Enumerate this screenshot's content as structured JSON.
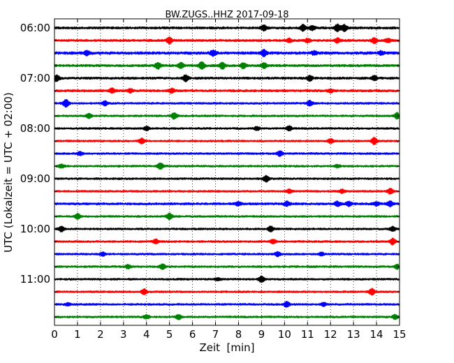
{
  "chart_data": {
    "type": "line",
    "title": "BW.ZUGS..HHZ 2017-09-18",
    "xlabel": "Zeit  [min]",
    "ylabel": "UTC (Lokalzeit = UTC + 02:00)",
    "xlim": [
      0,
      15
    ],
    "x_ticks": [
      "0",
      "1",
      "2",
      "3",
      "4",
      "5",
      "6",
      "7",
      "8",
      "9",
      "10",
      "11",
      "12",
      "13",
      "14",
      "15"
    ],
    "y_tick_labels": [
      "06:00",
      "07:00",
      "08:00",
      "09:00",
      "10:00",
      "11:00"
    ],
    "grid": "vertical dotted",
    "colors": [
      "#000000",
      "#ff0000",
      "#0000ff",
      "#008000"
    ],
    "traces": [
      {
        "start": "06:00",
        "color": "#000000",
        "amp": 3.0,
        "events": [
          {
            "t": 9.1,
            "a": 6
          },
          {
            "t": 10.8,
            "a": 7
          },
          {
            "t": 11.2,
            "a": 5
          },
          {
            "t": 12.3,
            "a": 8
          },
          {
            "t": 12.6,
            "a": 7
          }
        ]
      },
      {
        "start": "06:15",
        "color": "#ff0000",
        "amp": 3.0,
        "events": [
          {
            "t": 5.0,
            "a": 7
          },
          {
            "t": 10.2,
            "a": 4
          },
          {
            "t": 11.0,
            "a": 4
          },
          {
            "t": 12.3,
            "a": 5
          },
          {
            "t": 13.9,
            "a": 6
          },
          {
            "t": 14.5,
            "a": 4
          }
        ]
      },
      {
        "start": "06:30",
        "color": "#0000ff",
        "amp": 3.5,
        "events": [
          {
            "t": 1.4,
            "a": 5
          },
          {
            "t": 6.9,
            "a": 6
          },
          {
            "t": 9.1,
            "a": 7
          },
          {
            "t": 11.3,
            "a": 4
          },
          {
            "t": 14.2,
            "a": 4
          }
        ]
      },
      {
        "start": "06:45",
        "color": "#008000",
        "amp": 3.0,
        "events": [
          {
            "t": 4.5,
            "a": 7
          },
          {
            "t": 5.5,
            "a": 6
          },
          {
            "t": 6.4,
            "a": 8
          },
          {
            "t": 7.3,
            "a": 7
          },
          {
            "t": 8.2,
            "a": 6
          },
          {
            "t": 9.1,
            "a": 6
          }
        ]
      },
      {
        "start": "07:00",
        "color": "#000000",
        "amp": 3.0,
        "events": [
          {
            "t": 0.1,
            "a": 7
          },
          {
            "t": 5.7,
            "a": 7
          },
          {
            "t": 11.1,
            "a": 6
          },
          {
            "t": 13.9,
            "a": 5
          }
        ]
      },
      {
        "start": "07:15",
        "color": "#ff0000",
        "amp": 3.0,
        "events": [
          {
            "t": 2.5,
            "a": 5
          },
          {
            "t": 3.3,
            "a": 4
          },
          {
            "t": 5.1,
            "a": 5
          },
          {
            "t": 12.0,
            "a": 4
          }
        ]
      },
      {
        "start": "07:30",
        "color": "#0000ff",
        "amp": 2.5,
        "events": [
          {
            "t": 0.5,
            "a": 9
          },
          {
            "t": 2.2,
            "a": 5
          },
          {
            "t": 11.1,
            "a": 6
          }
        ]
      },
      {
        "start": "07:45",
        "color": "#008000",
        "amp": 2.5,
        "events": [
          {
            "t": 1.5,
            "a": 5
          },
          {
            "t": 5.2,
            "a": 7
          },
          {
            "t": 14.9,
            "a": 7
          }
        ]
      },
      {
        "start": "08:00",
        "color": "#000000",
        "amp": 2.5,
        "events": [
          {
            "t": 4.0,
            "a": 4
          },
          {
            "t": 8.8,
            "a": 4
          },
          {
            "t": 10.2,
            "a": 5
          }
        ]
      },
      {
        "start": "08:15",
        "color": "#ff0000",
        "amp": 2.5,
        "events": [
          {
            "t": 3.8,
            "a": 6
          },
          {
            "t": 12.0,
            "a": 5
          },
          {
            "t": 13.9,
            "a": 8
          }
        ]
      },
      {
        "start": "08:30",
        "color": "#0000ff",
        "amp": 2.5,
        "events": [
          {
            "t": 1.1,
            "a": 4
          },
          {
            "t": 9.8,
            "a": 6
          }
        ]
      },
      {
        "start": "08:45",
        "color": "#008000",
        "amp": 2.5,
        "events": [
          {
            "t": 0.3,
            "a": 4
          },
          {
            "t": 4.6,
            "a": 7
          },
          {
            "t": 12.3,
            "a": 3
          }
        ]
      },
      {
        "start": "09:00",
        "color": "#000000",
        "amp": 2.5,
        "events": [
          {
            "t": 9.2,
            "a": 7
          }
        ]
      },
      {
        "start": "09:15",
        "color": "#ff0000",
        "amp": 2.5,
        "events": [
          {
            "t": 10.2,
            "a": 4
          },
          {
            "t": 12.5,
            "a": 4
          },
          {
            "t": 14.6,
            "a": 6
          }
        ]
      },
      {
        "start": "09:30",
        "color": "#0000ff",
        "amp": 3.0,
        "events": [
          {
            "t": 8.0,
            "a": 4
          },
          {
            "t": 10.1,
            "a": 5
          },
          {
            "t": 12.3,
            "a": 5
          },
          {
            "t": 12.8,
            "a": 5
          },
          {
            "t": 14.0,
            "a": 4
          },
          {
            "t": 14.6,
            "a": 6
          }
        ]
      },
      {
        "start": "09:45",
        "color": "#008000",
        "amp": 2.5,
        "events": [
          {
            "t": 1.0,
            "a": 6
          },
          {
            "t": 5.0,
            "a": 7
          }
        ]
      },
      {
        "start": "10:00",
        "color": "#000000",
        "amp": 2.5,
        "events": [
          {
            "t": 0.3,
            "a": 6
          },
          {
            "t": 9.4,
            "a": 6
          },
          {
            "t": 14.7,
            "a": 5
          }
        ]
      },
      {
        "start": "10:15",
        "color": "#ff0000",
        "amp": 2.5,
        "events": [
          {
            "t": 4.4,
            "a": 5
          },
          {
            "t": 9.5,
            "a": 5
          },
          {
            "t": 14.7,
            "a": 7
          }
        ]
      },
      {
        "start": "10:30",
        "color": "#0000ff",
        "amp": 2.5,
        "events": [
          {
            "t": 2.1,
            "a": 4
          },
          {
            "t": 9.7,
            "a": 5
          },
          {
            "t": 11.6,
            "a": 4
          }
        ]
      },
      {
        "start": "10:45",
        "color": "#008000",
        "amp": 2.5,
        "events": [
          {
            "t": 3.2,
            "a": 4
          },
          {
            "t": 4.7,
            "a": 6
          },
          {
            "t": 14.9,
            "a": 5
          }
        ]
      },
      {
        "start": "11:00",
        "color": "#000000",
        "amp": 2.5,
        "events": [
          {
            "t": 7.1,
            "a": 3
          },
          {
            "t": 9.0,
            "a": 7
          }
        ]
      },
      {
        "start": "11:15",
        "color": "#ff0000",
        "amp": 2.5,
        "events": [
          {
            "t": 3.9,
            "a": 6
          },
          {
            "t": 13.8,
            "a": 7
          }
        ]
      },
      {
        "start": "11:30",
        "color": "#0000ff",
        "amp": 2.5,
        "events": [
          {
            "t": 0.6,
            "a": 3
          },
          {
            "t": 10.1,
            "a": 6
          },
          {
            "t": 11.7,
            "a": 4
          }
        ]
      },
      {
        "start": "11:45",
        "color": "#008000",
        "amp": 2.5,
        "events": [
          {
            "t": 4.0,
            "a": 4
          },
          {
            "t": 5.4,
            "a": 5
          },
          {
            "t": 14.8,
            "a": 5
          }
        ]
      }
    ]
  }
}
